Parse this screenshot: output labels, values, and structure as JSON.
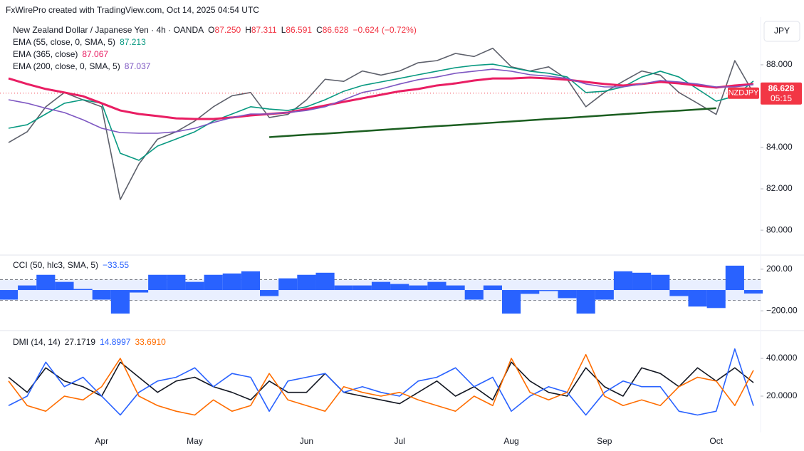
{
  "header": "FxWirePro created with TradingView.com, Oct 14, 2025 04:54 UTC",
  "currency": "JPY",
  "chart_data": [
    {
      "type": "line",
      "title": "New Zealand Dollar / Japanese Yen · 4h · OANDA",
      "ohlc": [
        {
          "label": "O",
          "value": "87.250"
        },
        {
          "label": "H",
          "value": "87.311"
        },
        {
          "label": "L",
          "value": "86.591"
        },
        {
          "label": "C",
          "value": "86.628"
        }
      ],
      "change": "−0.624 (−0.72%)",
      "categories": [
        null,
        null,
        null,
        null,
        null,
        "Apr",
        null,
        null,
        null,
        null,
        "May",
        null,
        null,
        null,
        null,
        null,
        "Jun",
        null,
        null,
        null,
        null,
        "Jul",
        null,
        null,
        null,
        null,
        null,
        "Aug",
        null,
        null,
        null,
        null,
        "Sep",
        null,
        null,
        null,
        null,
        null,
        "Oct",
        null,
        null
      ],
      "series": [
        {
          "name": "NZDJPY",
          "color": "#5d606b",
          "values": [
            84.24,
            84.76,
            85.97,
            86.66,
            86.3,
            85.97,
            81.48,
            83.2,
            84.4,
            84.76,
            85.28,
            85.97,
            86.5,
            86.66,
            85.45,
            85.6,
            86.3,
            87.3,
            87.2,
            87.7,
            87.5,
            87.7,
            88.1,
            88.2,
            88.55,
            88.4,
            88.8,
            87.9,
            87.7,
            87.9,
            87.3,
            85.97,
            86.66,
            87.2,
            87.7,
            87.5,
            86.66,
            86.14,
            85.6,
            88.2,
            86.628
          ]
        },
        {
          "name": "EMA (55, close, 0, SMA, 5)",
          "legend_value": "87.213",
          "color": "#089981",
          "values": [
            84.93,
            85.1,
            85.62,
            86.14,
            86.31,
            86.14,
            83.72,
            83.38,
            84.07,
            84.41,
            84.76,
            85.28,
            85.62,
            85.97,
            85.86,
            85.79,
            85.97,
            86.31,
            86.72,
            87.0,
            87.17,
            87.34,
            87.52,
            87.69,
            87.86,
            87.97,
            88.03,
            87.86,
            87.69,
            87.59,
            87.41,
            86.66,
            86.72,
            86.93,
            87.41,
            87.69,
            87.41,
            86.83,
            86.24,
            86.48,
            87.213
          ]
        },
        {
          "name": "EMA (365, close)",
          "legend_value": "87.067",
          "color": "#e91e63",
          "values": [
            87.34,
            87.07,
            86.83,
            86.66,
            86.48,
            86.14,
            85.79,
            85.62,
            85.52,
            85.41,
            85.38,
            85.38,
            85.45,
            85.55,
            85.62,
            85.69,
            85.86,
            86.03,
            86.21,
            86.38,
            86.55,
            86.72,
            86.83,
            87.0,
            87.1,
            87.24,
            87.34,
            87.34,
            87.38,
            87.34,
            87.28,
            87.17,
            87.07,
            87.0,
            87.07,
            87.17,
            87.1,
            87.0,
            86.9,
            87.0,
            87.067
          ]
        },
        {
          "name": "EMA (200, close, 0, SMA, 5)",
          "legend_value": "87.037",
          "color": "#7e57c2",
          "values": [
            86.31,
            86.14,
            85.9,
            85.69,
            85.34,
            84.93,
            84.72,
            84.69,
            84.69,
            84.76,
            84.93,
            85.21,
            85.45,
            85.62,
            85.62,
            85.69,
            85.79,
            85.97,
            86.31,
            86.66,
            86.83,
            87.07,
            87.28,
            87.41,
            87.59,
            87.69,
            87.79,
            87.69,
            87.52,
            87.45,
            87.34,
            87.07,
            86.93,
            86.93,
            87.07,
            87.24,
            87.17,
            87.07,
            86.93,
            86.93,
            87.037
          ]
        }
      ],
      "trendline": {
        "color": "#1b5e20",
        "values": [
          null,
          null,
          null,
          null,
          null,
          null,
          null,
          null,
          null,
          null,
          null,
          null,
          null,
          null,
          84.5,
          84.56,
          84.62,
          84.67,
          84.73,
          84.79,
          84.85,
          84.91,
          84.97,
          85.03,
          85.08,
          85.14,
          85.2,
          85.26,
          85.32,
          85.38,
          85.43,
          85.49,
          85.55,
          85.61,
          85.67,
          85.73,
          85.78,
          85.84,
          85.9,
          null,
          null
        ]
      },
      "last_price_label": "86.628",
      "countdown": "05:15",
      "ylim": [
        78.9,
        90.1
      ],
      "yticks": [
        {
          "value": 88,
          "label": "88.000"
        },
        {
          "value": 84,
          "label": "84.000"
        },
        {
          "value": 82,
          "label": "82.000"
        },
        {
          "value": 80,
          "label": "80.000"
        }
      ]
    },
    {
      "type": "bar",
      "title": "CCI (50, hlc3, SMA, 5)",
      "legend_value": "−33.55",
      "color": "#2962ff",
      "values": [
        -92,
        44,
        146,
        78,
        10,
        -92,
        -227,
        -24,
        146,
        146,
        78,
        146,
        159,
        180,
        -58,
        112,
        146,
        166,
        44,
        44,
        78,
        58,
        44,
        78,
        44,
        -92,
        44,
        -227,
        -37,
        -10,
        -78,
        -227,
        -92,
        180,
        166,
        146,
        -58,
        -159,
        -173,
        234,
        -33.55
      ],
      "bands": [
        -100,
        100
      ],
      "ylim": [
        -383,
        281
      ],
      "yticks": [
        {
          "value": 200,
          "label": "200.00"
        },
        {
          "value": -200,
          "label": "−200.00"
        }
      ]
    },
    {
      "type": "line",
      "title": "DMI (14, 14)",
      "series": [
        {
          "legend_value": "27.1719",
          "color": "#131722",
          "values": [
            30,
            22,
            35,
            28,
            25,
            20,
            38,
            30,
            22,
            28,
            30,
            25,
            22,
            18,
            28,
            22,
            22,
            32,
            22,
            20,
            18,
            16,
            22,
            28,
            20,
            25,
            18,
            38,
            28,
            22,
            20,
            35,
            25,
            20,
            35,
            32,
            25,
            35,
            28,
            35,
            27.1719
          ]
        },
        {
          "legend_value": "14.8997",
          "color": "#2962ff",
          "values": [
            15,
            20,
            38,
            25,
            30,
            20,
            10,
            22,
            28,
            30,
            35,
            25,
            32,
            30,
            12,
            28,
            30,
            32,
            22,
            25,
            22,
            20,
            28,
            30,
            35,
            25,
            30,
            12,
            20,
            25,
            22,
            10,
            22,
            28,
            25,
            25,
            12,
            10,
            12,
            45,
            14.8997
          ]
        },
        {
          "legend_value": "33.6910",
          "color": "#ff6d00",
          "values": [
            28,
            15,
            12,
            20,
            18,
            25,
            40,
            20,
            15,
            12,
            10,
            18,
            12,
            15,
            32,
            18,
            15,
            12,
            25,
            22,
            20,
            22,
            18,
            15,
            12,
            20,
            15,
            40,
            22,
            18,
            22,
            42,
            20,
            15,
            18,
            15,
            25,
            30,
            28,
            15,
            33.691
          ]
        }
      ],
      "ylim": [
        0.75,
        53.2
      ],
      "yticks": [
        {
          "value": 40,
          "label": "40.0000"
        },
        {
          "value": 20,
          "label": "20.0000"
        }
      ]
    }
  ]
}
